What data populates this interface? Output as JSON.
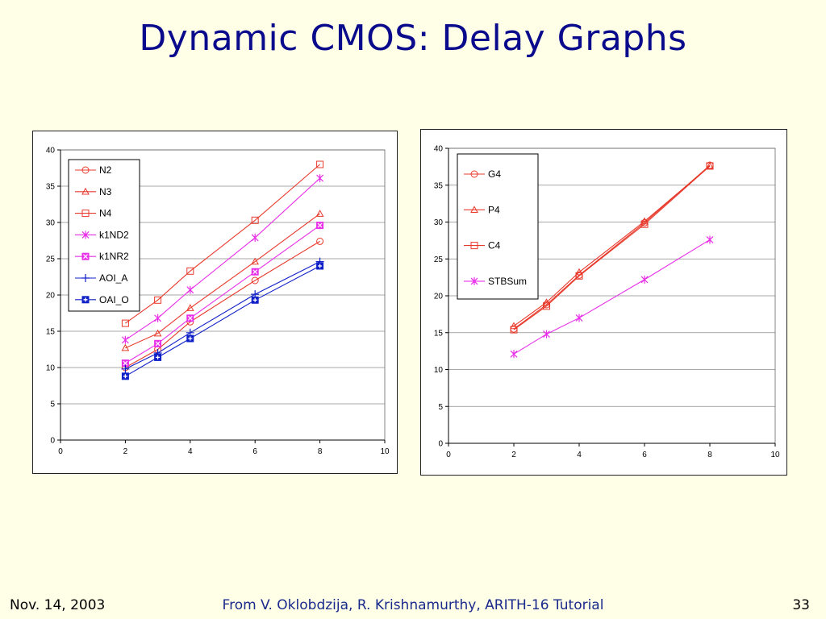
{
  "slide": {
    "title": "Dynamic CMOS: Delay Graphs",
    "footer_date": "Nov. 14, 2003",
    "footer_credit": "From V. Oklobdzija, R. Krishnamurthy, ARITH-16 Tutorial",
    "page_number": "33"
  },
  "chart_data": [
    {
      "type": "line",
      "title": "",
      "xlabel": "",
      "ylabel": "",
      "xlim": [
        0,
        10
      ],
      "ylim": [
        0,
        40
      ],
      "xticks": [
        0,
        2,
        4,
        6,
        8,
        10
      ],
      "yticks": [
        0,
        5,
        10,
        15,
        20,
        25,
        30,
        35,
        40
      ],
      "grid": "horizontal",
      "legend_position": "top-left",
      "x": [
        2,
        3,
        4,
        6,
        8
      ],
      "series": [
        {
          "name": "N2",
          "marker": "circle",
          "color": "#e8392b",
          "values": [
            10.0,
            12.5,
            16.3,
            22.0,
            27.4
          ]
        },
        {
          "name": "N3",
          "marker": "triangle",
          "color": "#e8392b",
          "values": [
            12.7,
            14.7,
            18.2,
            24.6,
            31.2
          ]
        },
        {
          "name": "N4",
          "marker": "square",
          "color": "#e8392b",
          "values": [
            16.1,
            19.3,
            23.3,
            30.3,
            38.0
          ]
        },
        {
          "name": "k1ND2",
          "marker": "star",
          "color": "#e82ee8",
          "values": [
            13.8,
            16.8,
            20.7,
            27.9,
            36.1
          ]
        },
        {
          "name": "k1NR2",
          "marker": "xsquare",
          "color": "#e82ee8",
          "values": [
            10.6,
            13.3,
            16.8,
            23.2,
            29.6
          ]
        },
        {
          "name": "AOI_A",
          "marker": "plus",
          "color": "#1020c8",
          "values": [
            9.8,
            12.0,
            14.8,
            20.1,
            24.6
          ]
        },
        {
          "name": "OAI_O",
          "marker": "plussquare",
          "color": "#1020c8",
          "values": [
            8.8,
            11.4,
            14.0,
            19.3,
            24.0
          ]
        }
      ]
    },
    {
      "type": "line",
      "title": "",
      "xlabel": "",
      "ylabel": "",
      "xlim": [
        0,
        10
      ],
      "ylim": [
        0,
        40
      ],
      "xticks": [
        0,
        2,
        4,
        6,
        8,
        10
      ],
      "yticks": [
        0,
        5,
        10,
        15,
        20,
        25,
        30,
        35,
        40
      ],
      "grid": "horizontal",
      "legend_position": "top-left",
      "x": [
        2,
        3,
        4,
        6,
        8
      ],
      "series": [
        {
          "name": "G4",
          "marker": "circle",
          "color": "#e8392b",
          "values": [
            15.5,
            18.8,
            22.8,
            29.9,
            37.7
          ]
        },
        {
          "name": "P4",
          "marker": "triangle",
          "color": "#e8392b",
          "values": [
            15.9,
            19.1,
            23.2,
            30.1,
            37.6
          ]
        },
        {
          "name": "C4",
          "marker": "square",
          "color": "#e8392b",
          "values": [
            15.4,
            18.6,
            22.7,
            29.7,
            37.6
          ]
        },
        {
          "name": "STBSum",
          "marker": "star",
          "color": "#e82ee8",
          "values": [
            12.1,
            14.8,
            17.0,
            22.2,
            27.6
          ]
        }
      ]
    }
  ]
}
